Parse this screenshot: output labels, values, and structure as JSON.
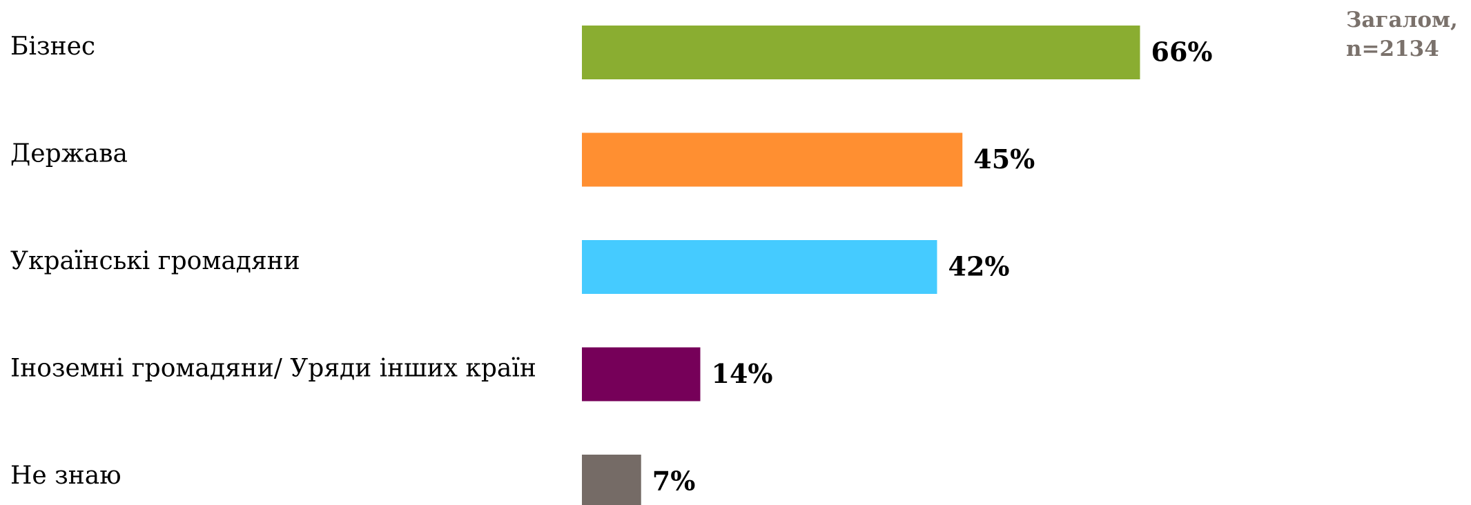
{
  "chart_data": {
    "type": "bar",
    "orientation": "horizontal",
    "categories": [
      "Бізнес",
      "Держава",
      "Українські громадяни",
      "Іноземні громадяни/ Уряди інших країн",
      "Не знаю"
    ],
    "values": [
      66,
      45,
      42,
      14,
      7
    ],
    "value_labels": [
      "66%",
      "45%",
      "42%",
      "14%",
      "7%"
    ],
    "colors": [
      "#8aad31",
      "#ff8f31",
      "#45cbff",
      "#760059",
      "#756b66"
    ],
    "title": "",
    "xlabel": "",
    "ylabel": "",
    "xlim": [
      0,
      100
    ],
    "grid": false,
    "legend": "none"
  },
  "note": {
    "line1": "Загалом,",
    "line2": "n=2134",
    "color": "#7a716b"
  }
}
